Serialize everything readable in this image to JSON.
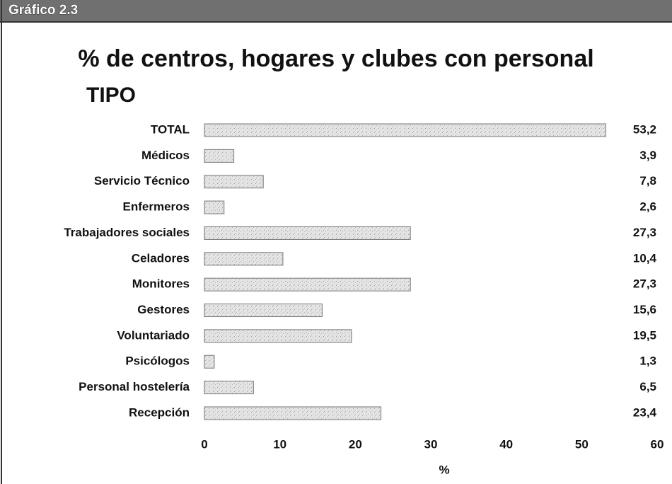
{
  "header": "Gráfico 2.3",
  "chart_data": {
    "type": "bar",
    "orientation": "horizontal",
    "title": "% de centros, hogares y clubes con personal",
    "category_axis_title": "TIPO",
    "x_axis_label": "%",
    "categories": [
      "TOTAL",
      "Médicos",
      "Servicio Técnico",
      "Enfermeros",
      "Trabajadores sociales",
      "Celadores",
      "Monitores",
      "Gestores",
      "Voluntariado",
      "Psicólogos",
      "Personal hostelería",
      "Recepción"
    ],
    "values": [
      53.2,
      3.9,
      7.8,
      2.6,
      27.3,
      10.4,
      27.3,
      15.6,
      19.5,
      1.3,
      6.5,
      23.4
    ],
    "value_labels": [
      "53,2",
      "3,9",
      "7,8",
      "2,6",
      "27,3",
      "10,4",
      "27,3",
      "15,6",
      "19,5",
      "1,3",
      "6,5",
      "23,4"
    ],
    "color": "#d9d9d9",
    "xlim": [
      0,
      60
    ],
    "xticks": [
      0,
      10,
      20,
      30,
      40,
      50,
      60
    ],
    "grid": false
  }
}
